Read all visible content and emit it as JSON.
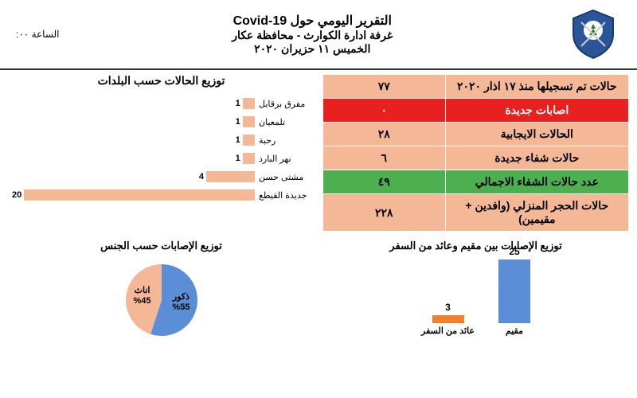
{
  "header": {
    "title1": "التقرير اليومي حول Covid-19",
    "title2": "غرفة ادارة الكوارث - محافظة عكار",
    "title3": "الخميس ١١ حزيران ٢٠٢٠",
    "time_label": "الساعة ٠٠:"
  },
  "stats": [
    {
      "label": "حالات تم تسجيلها منذ ١٧ اذار ٢٠٢٠",
      "value": "٧٧",
      "bg": "#f5b896",
      "vbg": "#f5b896"
    },
    {
      "label": "اصابات جديدة",
      "value": "٠",
      "bg": "#e82020",
      "vbg": "#e82020",
      "color": "#fff"
    },
    {
      "label": "الحالات الايجابية",
      "value": "٢٨",
      "bg": "#f5b896",
      "vbg": "#f5b896"
    },
    {
      "label": "حالات شفاء جديدة",
      "value": "٦",
      "bg": "#f5b896",
      "vbg": "#f5b896"
    },
    {
      "label": "عدد حالات الشفاء الاجمالي",
      "value": "٤٩",
      "bg": "#4caf50",
      "vbg": "#4caf50"
    },
    {
      "label": "حالات الحجر المنزلي (وافدين + مقيمين)",
      "value": "٢٢٨",
      "bg": "#f5b896",
      "vbg": "#f5b896"
    }
  ],
  "bar_chart": {
    "title": "توزيع الحالات حسب البلدات",
    "bar_color": "#f5b896",
    "max": 20,
    "items": [
      {
        "label": "مفرق برقايل",
        "value": 1
      },
      {
        "label": "تلمعيان",
        "value": 1
      },
      {
        "label": "رحبة",
        "value": 1
      },
      {
        "label": "نهر البارد",
        "value": 1
      },
      {
        "label": "مشتى حسن",
        "value": 4
      },
      {
        "label": "جديدة القيطع",
        "value": 20
      }
    ]
  },
  "pie_chart": {
    "title": "توزيع الإصابات حسب الجنس",
    "slices": [
      {
        "label": "ذكور",
        "pct": "%55",
        "color": "#5a8fd8",
        "deg": 198
      },
      {
        "label": "اناث",
        "pct": "%45",
        "color": "#f5b896",
        "deg": 162
      }
    ]
  },
  "column_chart": {
    "title": "توزيع الإصابات بين مقيم وعائد من السفر",
    "items": [
      {
        "label": "مقيم",
        "value": 25,
        "color": "#5a8fd8",
        "height": 80
      },
      {
        "label": "عائد من السفر",
        "value": 3,
        "color": "#f08030",
        "height": 10
      }
    ]
  }
}
